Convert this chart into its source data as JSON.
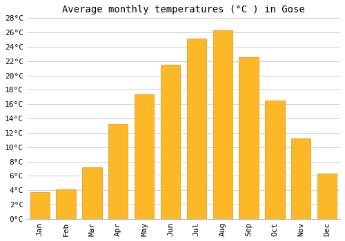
{
  "title": "Average monthly temperatures (°C ) in Gose",
  "months": [
    "Jan",
    "Feb",
    "Mar",
    "Apr",
    "May",
    "Jun",
    "Jul",
    "Aug",
    "Sep",
    "Oct",
    "Nov",
    "Dec"
  ],
  "values": [
    3.7,
    4.1,
    7.2,
    13.2,
    17.4,
    21.5,
    25.1,
    26.3,
    22.6,
    16.5,
    11.2,
    6.3
  ],
  "bar_color": "#FDB827",
  "bar_edge_color": "#E09010",
  "ylim": [
    0,
    28
  ],
  "ytick_step": 2,
  "background_color": "#ffffff",
  "grid_color": "#cccccc",
  "title_fontsize": 10,
  "tick_fontsize": 8,
  "bar_width": 0.75
}
